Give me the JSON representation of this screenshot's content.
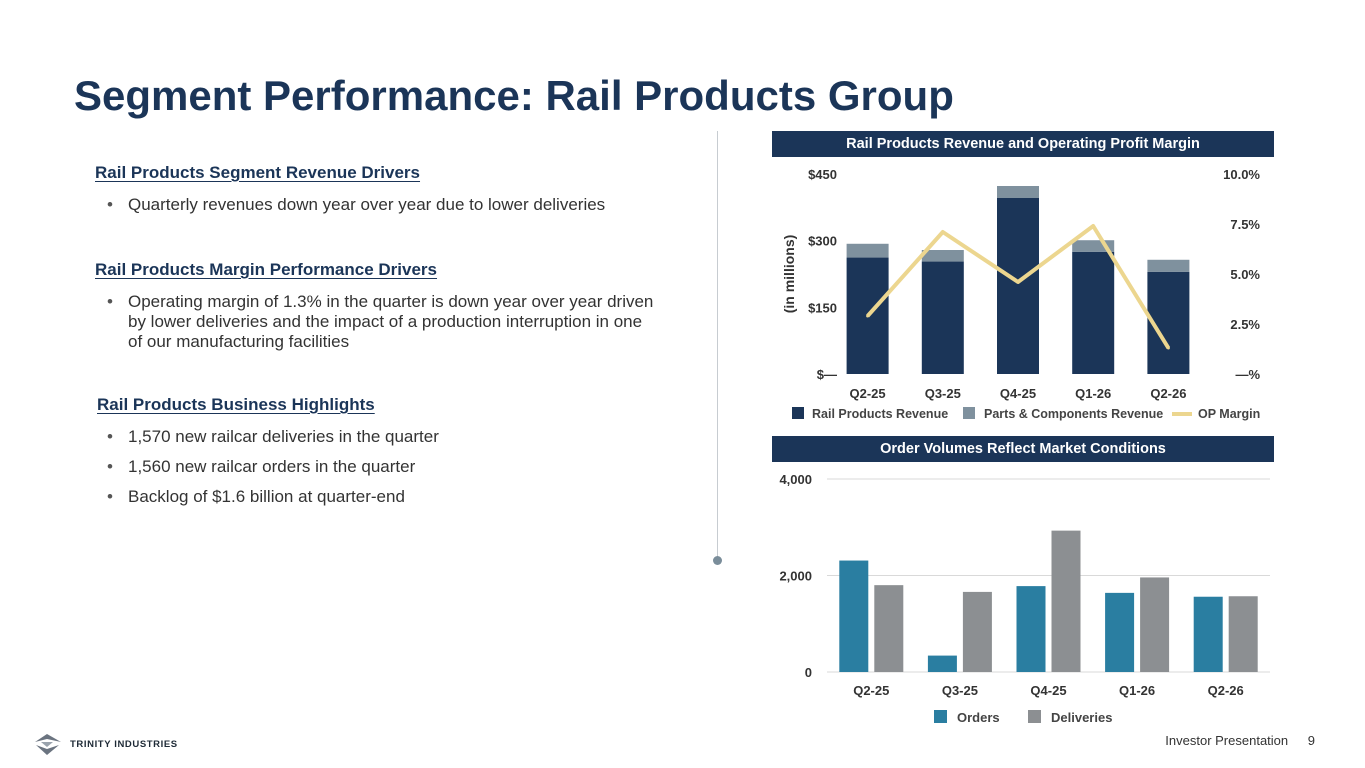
{
  "page": {
    "title": "Segment Performance: Rail Products Group",
    "footer_label": "Investor Presentation",
    "page_number": "9",
    "logo_text": "TRINITY INDUSTRIES"
  },
  "left": {
    "sections": [
      {
        "heading": "Rail Products Segment Revenue Drivers",
        "bullets": [
          "Quarterly revenues down year over year due to lower deliveries"
        ]
      },
      {
        "heading": "Rail Products Margin Performance Drivers",
        "bullets": [
          "Operating margin of 1.3% in the quarter is down year over year driven by lower deliveries and the impact of a production interruption in one of our manufacturing facilities"
        ]
      },
      {
        "heading": "Rail Products Business Highlights",
        "bullets": [
          "1,570 new railcar deliveries in the quarter",
          "1,560 new railcar orders in the quarter",
          "Backlog of $1.6 billion at quarter-end"
        ]
      }
    ]
  },
  "colors": {
    "navy": "#1b3558",
    "parts": "#7f919e",
    "op_margin": "#ecd68f",
    "orders": "#2a7ea1",
    "deliveries": "#8c8f92"
  },
  "chart_data": [
    {
      "type": "bar",
      "stacked": true,
      "title": "Rail Products Revenue and Operating Profit Margin",
      "categories": [
        "Q2-25",
        "Q3-25",
        "Q4-25",
        "Q1-26",
        "Q2-26"
      ],
      "ylabel": "(in millions)",
      "ylim": [
        0,
        450
      ],
      "yticks": [
        "$—",
        "$150",
        "$300",
        "$450"
      ],
      "y2lim": [
        0,
        10
      ],
      "y2ticks": [
        "—%",
        "2.5%",
        "5.0%",
        "7.5%",
        "10.0%"
      ],
      "series": [
        {
          "name": "Rail Products Revenue",
          "values": [
            262,
            253,
            396,
            275,
            230
          ]
        },
        {
          "name": "Parts & Components Revenue",
          "values": [
            31,
            26,
            27,
            26,
            27
          ]
        },
        {
          "name": "OP Margin",
          "axis": "right",
          "type": "line",
          "values": [
            2.9,
            7.1,
            4.6,
            7.4,
            1.3
          ]
        }
      ],
      "legend_position": "bottom"
    },
    {
      "type": "bar",
      "title": "Order Volumes Reflect Market Conditions",
      "categories": [
        "Q2-25",
        "Q3-25",
        "Q4-25",
        "Q1-26",
        "Q2-26"
      ],
      "ylim": [
        0,
        4000
      ],
      "yticks": [
        "0",
        "2,000",
        "4,000"
      ],
      "series": [
        {
          "name": "Orders",
          "values": [
            2310,
            340,
            1780,
            1640,
            1560
          ]
        },
        {
          "name": "Deliveries",
          "values": [
            1800,
            1660,
            2930,
            1960,
            1570
          ]
        }
      ],
      "grid": true,
      "legend_position": "bottom"
    }
  ]
}
